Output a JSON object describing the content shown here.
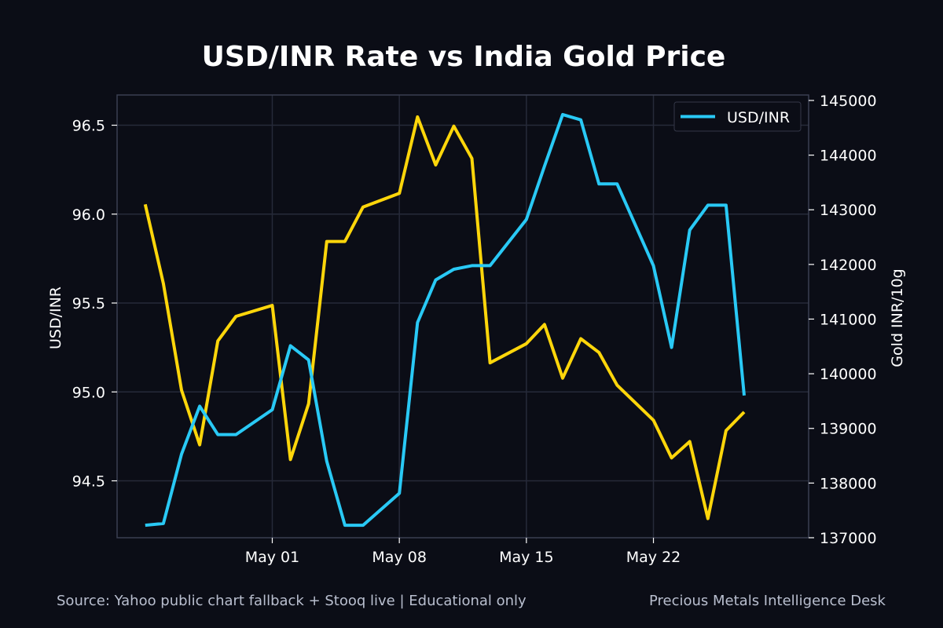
{
  "chart_data": {
    "type": "line",
    "title": "USD/INR Rate vs India Gold Price",
    "x_dates": [
      "2026-04-24",
      "2026-04-25",
      "2026-04-26",
      "2026-04-27",
      "2026-04-28",
      "2026-04-29",
      "2026-04-30",
      "2026-05-01",
      "2026-05-02",
      "2026-05-03",
      "2026-05-04",
      "2026-05-05",
      "2026-05-06",
      "2026-05-07",
      "2026-05-08",
      "2026-05-09",
      "2026-05-10",
      "2026-05-11",
      "2026-05-12",
      "2026-05-13",
      "2026-05-14",
      "2026-05-15",
      "2026-05-16",
      "2026-05-17",
      "2026-05-18",
      "2026-05-19",
      "2026-05-20",
      "2026-05-21",
      "2026-05-22",
      "2026-05-23",
      "2026-05-24",
      "2026-05-25",
      "2026-05-26",
      "2026-05-27",
      "2026-05-28",
      "2026-05-29"
    ],
    "x_ticks": [
      {
        "date": "2026-05-01",
        "label": "May 01"
      },
      {
        "date": "2026-05-08",
        "label": "May 08"
      },
      {
        "date": "2026-05-15",
        "label": "May 15"
      },
      {
        "date": "2026-05-22",
        "label": "May 22"
      }
    ],
    "y_left": {
      "label": "USD/INR",
      "lim": [
        94.18,
        96.67
      ],
      "ticks": [
        "94.5",
        "95.0",
        "95.5",
        "96.0",
        "96.5"
      ]
    },
    "y_right": {
      "label": "Gold INR/10g",
      "lim": [
        137000,
        145100
      ],
      "ticks": [
        "137000",
        "138000",
        "139000",
        "140000",
        "141000",
        "142000",
        "143000",
        "144000",
        "145000"
      ]
    },
    "series": [
      {
        "name": "USD/INR",
        "axis": "left",
        "color": "#29c9f5",
        "values": [
          94.25,
          94.26,
          94.65,
          94.92,
          94.76,
          94.76,
          null,
          94.9,
          95.26,
          95.18,
          94.61,
          94.25,
          94.25,
          null,
          94.43,
          95.39,
          95.63,
          95.69,
          95.71,
          95.71,
          null,
          95.97,
          96.27,
          96.56,
          96.53,
          96.17,
          96.17,
          null,
          95.71,
          95.25,
          95.91,
          96.05,
          96.05,
          94.98,
          null,
          null
        ]
      },
      {
        "axis": "right",
        "color": "#ffd60a",
        "values": [
          143100,
          141650,
          139700,
          138700,
          140600,
          141050,
          null,
          141250,
          138430,
          139450,
          142420,
          142420,
          143050,
          null,
          143300,
          144700,
          143820,
          144530,
          143940,
          140200,
          null,
          140550,
          140900,
          139920,
          140640,
          140390,
          139790,
          null,
          139150,
          138460,
          138760,
          137350,
          138960,
          139300,
          null,
          null
        ]
      }
    ],
    "legend": {
      "position": "top-right",
      "entries": [
        "USD/INR"
      ]
    },
    "grid": true
  },
  "footer": {
    "source": "Source: Yahoo public chart fallback + Stooq live | Educational only",
    "brand": "Precious Metals Intelligence Desk"
  },
  "colors": {
    "background": "#0b0d16",
    "grid": "#262a39",
    "axis": "#3a3f50",
    "text": "#ffffff",
    "muted_text": "#b9bfcf"
  }
}
